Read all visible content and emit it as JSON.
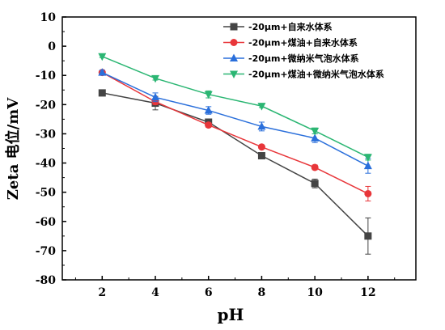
{
  "chart_data": {
    "type": "line",
    "xlabel": "pH",
    "ylabel": "Zeta 电位/mV",
    "x": [
      2,
      4,
      6,
      8,
      10,
      12
    ],
    "xticks": [
      "2",
      "4",
      "6",
      "8",
      "10",
      "12"
    ],
    "xlim": [
      0.5,
      13.8
    ],
    "ylim": [
      -80,
      10
    ],
    "yticks": [
      "10",
      "0",
      "-10",
      "-20",
      "-30",
      "-40",
      "-50",
      "-60",
      "-70",
      "-80"
    ],
    "grid": false,
    "legend_position": "top-right",
    "series": [
      {
        "name": "-20μm+自来水体系",
        "color": "#444444",
        "marker": "square",
        "values": [
          -16,
          -19.5,
          -26,
          -37.5,
          -47,
          -65
        ],
        "errors": [
          0.5,
          2.3,
          1.0,
          0.5,
          1.5,
          6.2
        ]
      },
      {
        "name": "-20μm+煤油+自来水体系",
        "color": "#e8363a",
        "marker": "circle",
        "values": [
          -9,
          -19,
          -27,
          -34.5,
          -41.5,
          -50.5
        ],
        "errors": [
          0.5,
          1.0,
          0.8,
          0.5,
          0.8,
          2.5
        ]
      },
      {
        "name": "-20μm+微纳米气泡水体系",
        "color": "#2a6fdb",
        "marker": "triangle-up",
        "values": [
          -9,
          -17.5,
          -22,
          -27.5,
          -31.5,
          -41
        ],
        "errors": [
          0.8,
          1.5,
          1.3,
          1.5,
          1.5,
          2.5
        ]
      },
      {
        "name": "-20μm+煤油+微纳米气泡水体系",
        "color": "#2bb673",
        "marker": "triangle-down",
        "values": [
          -3.5,
          -11,
          -16.5,
          -20.5,
          -29,
          -38
        ],
        "errors": [
          0.4,
          0.6,
          1.2,
          0.5,
          1.0,
          1.0
        ]
      }
    ]
  }
}
